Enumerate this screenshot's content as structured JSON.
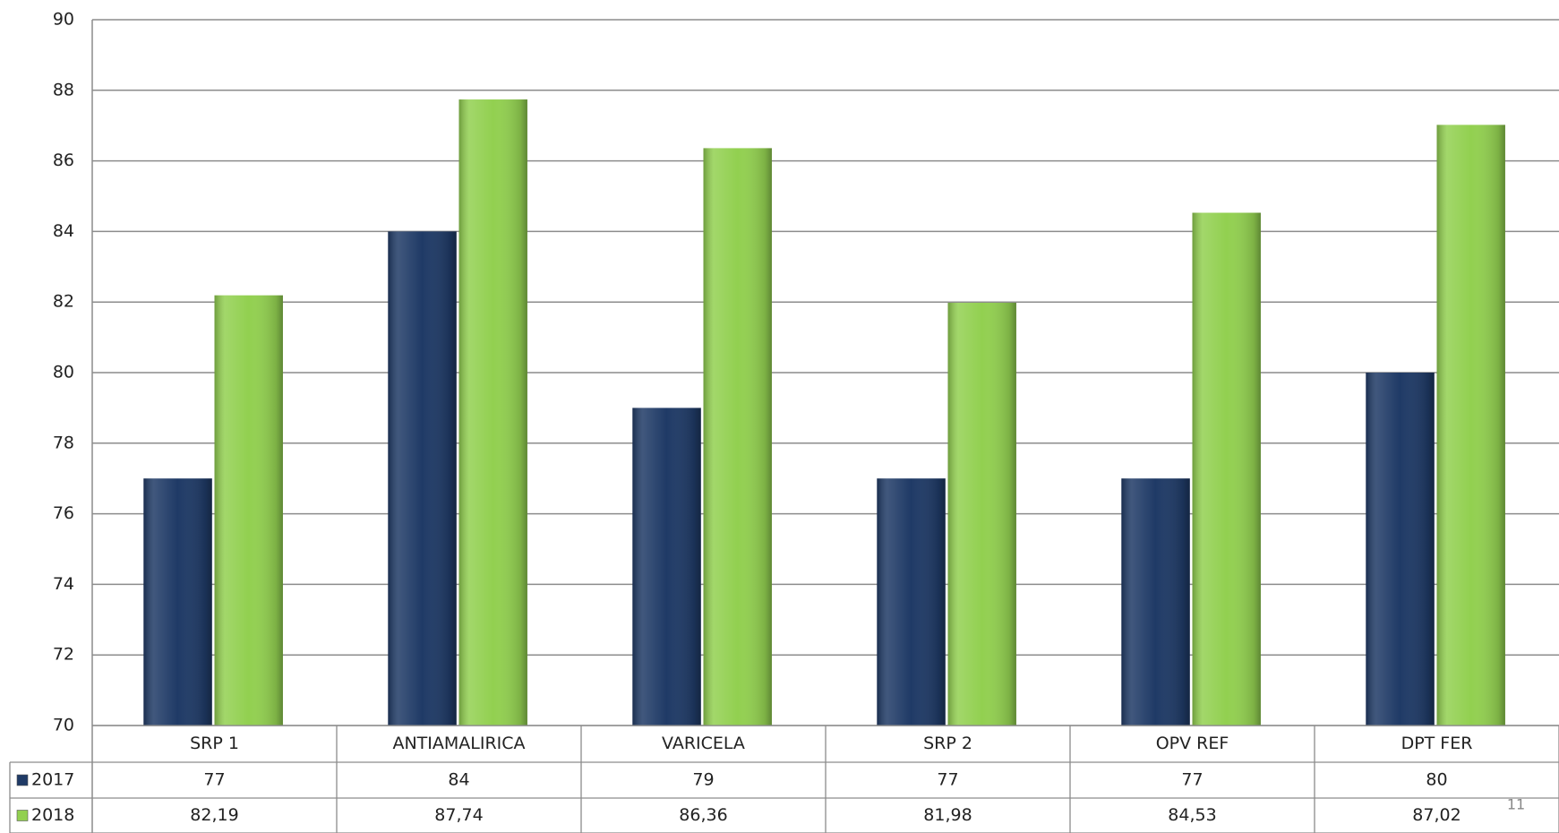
{
  "chart_data": {
    "type": "bar",
    "categories": [
      "SRP 1",
      "ANTIAMALIRICA",
      "VARICELA",
      "SRP 2",
      "OPV REF",
      "DPT FER"
    ],
    "series": [
      {
        "name": "2017",
        "color": "#1f3a66",
        "values": [
          77,
          84,
          79,
          77,
          77,
          80
        ]
      },
      {
        "name": "2018",
        "color": "#92d050",
        "values": [
          82.19,
          87.74,
          86.36,
          81.98,
          84.53,
          87.02
        ],
        "value_labels": [
          "82,19",
          "87,74",
          "86,36",
          "81,98",
          "84,53",
          "87,02"
        ]
      }
    ],
    "ylim": [
      70,
      90
    ],
    "yticks": [
      70,
      72,
      74,
      76,
      78,
      80,
      82,
      84,
      86,
      88,
      90
    ],
    "grid": true,
    "page_number": "11"
  }
}
